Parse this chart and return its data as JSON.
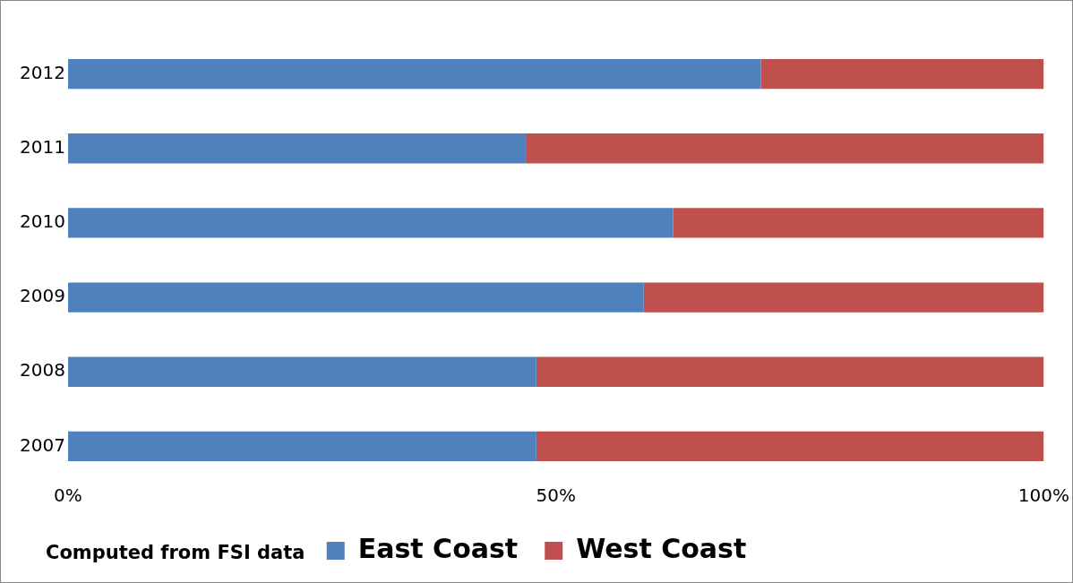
{
  "chart_data": {
    "type": "bar",
    "orientation": "horizontal",
    "stacked": true,
    "categories": [
      "2012",
      "2011",
      "2010",
      "2009",
      "2008",
      "2007"
    ],
    "series": [
      {
        "name": "East Coast",
        "color": "#4f81bd",
        "values": [
          71,
          47,
          62,
          59,
          48,
          48
        ]
      },
      {
        "name": "West Coast",
        "color": "#c0504d",
        "values": [
          29,
          53,
          38,
          41,
          52,
          52
        ]
      }
    ],
    "xlim": [
      0,
      100
    ],
    "xticks": [
      {
        "value": 0,
        "label": "0%"
      },
      {
        "value": 50,
        "label": "50%"
      },
      {
        "value": 100,
        "label": "100%"
      }
    ],
    "legend": "bottom",
    "annotations": [
      "Computed from FSI data"
    ]
  }
}
